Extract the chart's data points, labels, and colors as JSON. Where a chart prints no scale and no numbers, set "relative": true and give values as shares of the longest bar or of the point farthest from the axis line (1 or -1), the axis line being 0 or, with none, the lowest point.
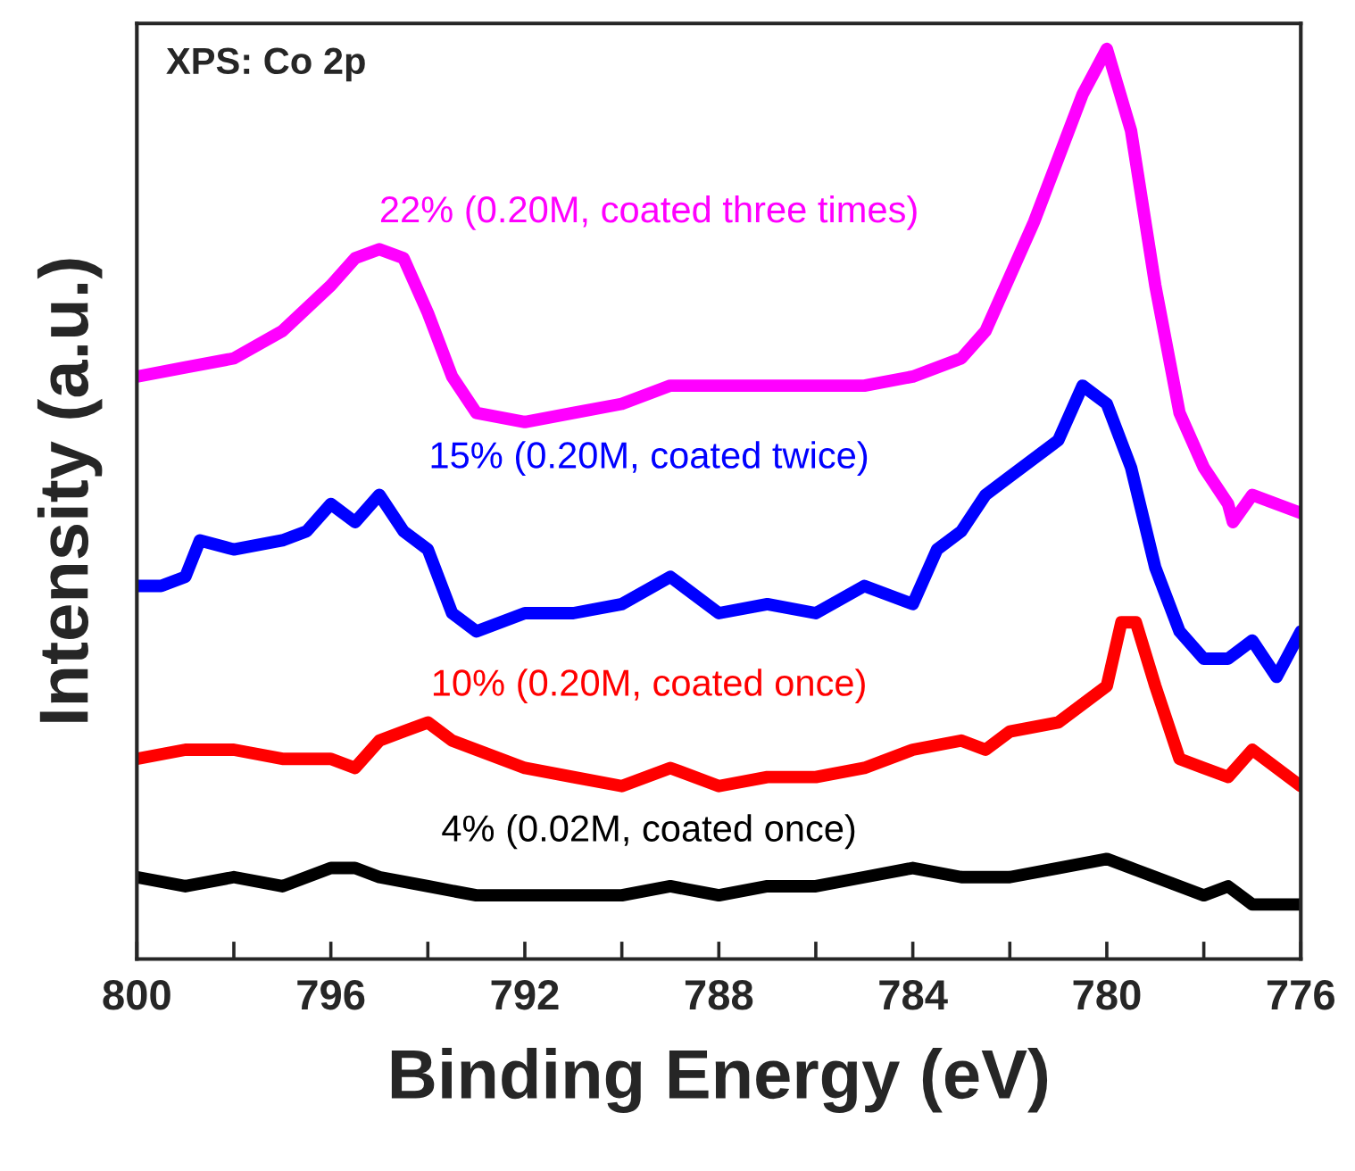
{
  "chart_data": {
    "type": "line",
    "relative": true,
    "title": "XPS: Co 2p",
    "xlabel": "Binding Energy (eV)",
    "ylabel": "Intensity (a.u.)",
    "xlim": [
      800,
      776
    ],
    "xticks": [
      800,
      {
        "value": 798,
        "label": null
      },
      796,
      {
        "value": 794,
        "label": null
      },
      792,
      {
        "value": 790,
        "label": null
      },
      788,
      {
        "value": 786,
        "label": null
      },
      784,
      {
        "value": 782,
        "label": null
      },
      780,
      {
        "value": 778,
        "label": null
      },
      776
    ],
    "grid": false,
    "legend": false,
    "marker": "none",
    "line_style": "solid",
    "series": [
      {
        "name": "22% (0.20M, coated three times)",
        "color": "#ff00ff",
        "x": [
          800,
          799,
          798,
          797,
          796,
          795.5,
          795,
          794.5,
          794,
          793.5,
          793,
          792,
          791,
          790,
          789,
          788,
          787,
          786,
          785,
          784,
          783,
          782.5,
          782,
          781.5,
          781,
          780.5,
          780,
          779.5,
          779,
          778.5,
          778,
          777.5,
          777.4,
          777,
          776
        ],
        "values": [
          0.64,
          0.65,
          0.66,
          0.69,
          0.74,
          0.77,
          0.78,
          0.77,
          0.71,
          0.64,
          0.6,
          0.59,
          0.6,
          0.61,
          0.63,
          0.63,
          0.63,
          0.63,
          0.63,
          0.64,
          0.66,
          0.69,
          0.75,
          0.81,
          0.88,
          0.95,
          1.0,
          0.91,
          0.74,
          0.6,
          0.54,
          0.5,
          0.48,
          0.51,
          0.49
        ]
      },
      {
        "name": "15% (0.20M, coated twice)",
        "color": "#0000ff",
        "x": [
          800,
          799.5,
          799,
          798.7,
          798,
          797,
          796.5,
          796,
          795.5,
          795,
          794.5,
          794,
          793.5,
          793,
          792,
          791,
          790,
          789,
          788,
          787,
          786,
          785,
          784,
          783.5,
          783,
          782.5,
          782,
          781,
          780.5,
          780,
          779.5,
          779,
          778.5,
          778,
          777.5,
          777,
          776.5,
          776
        ],
        "values": [
          0.41,
          0.41,
          0.42,
          0.46,
          0.45,
          0.46,
          0.47,
          0.5,
          0.48,
          0.51,
          0.47,
          0.45,
          0.38,
          0.36,
          0.38,
          0.38,
          0.39,
          0.42,
          0.38,
          0.39,
          0.38,
          0.41,
          0.39,
          0.45,
          0.47,
          0.51,
          0.53,
          0.57,
          0.63,
          0.61,
          0.54,
          0.43,
          0.36,
          0.33,
          0.33,
          0.35,
          0.31,
          0.36
        ]
      },
      {
        "name": "10% (0.20M, coated once)",
        "color": "#ff0000",
        "x": [
          800,
          799,
          798,
          797,
          796,
          795.5,
          795,
          794.5,
          794,
          793.5,
          793,
          792,
          791,
          790,
          789,
          788,
          787,
          786,
          785,
          784,
          783,
          782.5,
          782,
          781,
          780,
          779.7,
          779.4,
          779,
          778.5,
          778,
          777.5,
          777,
          776
        ],
        "values": [
          0.22,
          0.23,
          0.23,
          0.22,
          0.22,
          0.21,
          0.24,
          0.25,
          0.26,
          0.24,
          0.23,
          0.21,
          0.2,
          0.19,
          0.21,
          0.19,
          0.2,
          0.2,
          0.21,
          0.23,
          0.24,
          0.23,
          0.25,
          0.26,
          0.3,
          0.37,
          0.37,
          0.3,
          0.22,
          0.21,
          0.2,
          0.23,
          0.19
        ]
      },
      {
        "name": "4% (0.02M, coated once)",
        "color": "#000000",
        "x": [
          800,
          799,
          798,
          797,
          796,
          795.5,
          795,
          794,
          793,
          792,
          791,
          790,
          789,
          788,
          787,
          786,
          785,
          784,
          783,
          782,
          781,
          780,
          779.5,
          779,
          778.5,
          778,
          777.5,
          777,
          776.5,
          776
        ],
        "values": [
          0.09,
          0.08,
          0.09,
          0.08,
          0.1,
          0.1,
          0.09,
          0.08,
          0.07,
          0.07,
          0.07,
          0.07,
          0.08,
          0.07,
          0.08,
          0.08,
          0.09,
          0.1,
          0.09,
          0.09,
          0.1,
          0.11,
          0.1,
          0.09,
          0.08,
          0.07,
          0.08,
          0.06,
          0.06,
          0.06
        ]
      }
    ]
  }
}
